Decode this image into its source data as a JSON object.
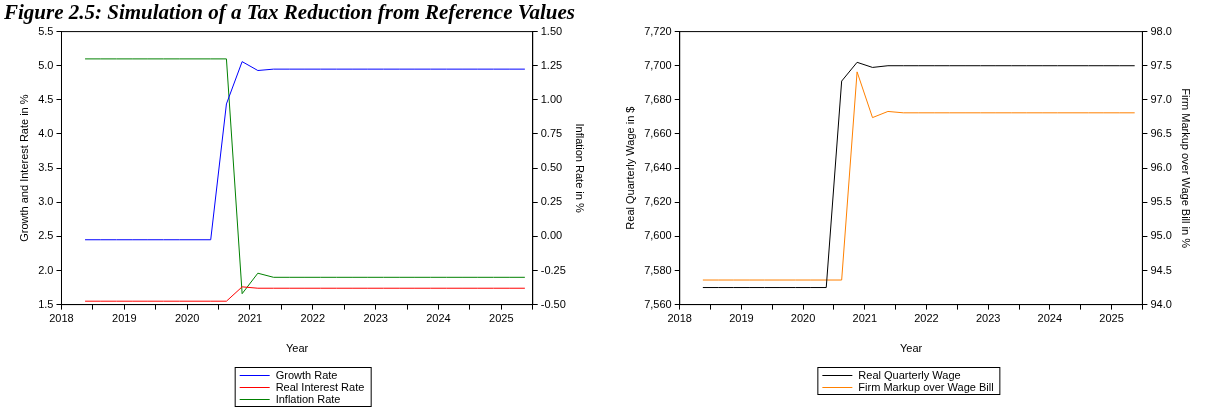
{
  "chart_data": [
    {
      "type": "line",
      "title": "Figure 2.5: Simulation of a Tax Reduction from Reference Values",
      "xlabel": "Year",
      "ylabel": "Growth and Interest Rate in %",
      "y2label": "Inflation Rate in %",
      "x": [
        2018.875,
        2019.125,
        2019.375,
        2019.625,
        2019.875,
        2020.125,
        2020.375,
        2020.625,
        2020.875,
        2021.125,
        2021.375,
        2021.625,
        2021.875,
        2022.125,
        2022.375,
        2022.625,
        2022.875,
        2023.125,
        2023.375,
        2023.625,
        2023.875,
        2024.125,
        2024.375,
        2024.625,
        2024.875,
        2025.125,
        2025.375,
        2025.625,
        2025.875
      ],
      "series": [
        {
          "name": "Growth Rate",
          "color": "#0000ff",
          "values": [
            2.45,
            2.45,
            2.45,
            2.45,
            2.45,
            2.45,
            2.45,
            2.45,
            2.45,
            4.44,
            5.06,
            4.93,
            4.95,
            4.95,
            4.95,
            4.95,
            4.95,
            4.95,
            4.95,
            4.95,
            4.95,
            4.95,
            4.95,
            4.95,
            4.95,
            4.95,
            4.95,
            4.95,
            4.95
          ]
        },
        {
          "name": "Real Interest Rate",
          "color": "#ff0000",
          "values": [
            1.55,
            1.55,
            1.55,
            1.55,
            1.55,
            1.55,
            1.55,
            1.55,
            1.55,
            1.55,
            1.76,
            1.74,
            1.74,
            1.74,
            1.74,
            1.74,
            1.74,
            1.74,
            1.74,
            1.74,
            1.74,
            1.74,
            1.74,
            1.74,
            1.74,
            1.74,
            1.74,
            1.74,
            1.74
          ]
        },
        {
          "name": "Inflation Rate",
          "color": "#008000",
          "axis": "y2",
          "values": [
            1.3,
            1.3,
            1.3,
            1.3,
            1.3,
            1.3,
            1.3,
            1.3,
            1.3,
            1.3,
            -0.42,
            -0.27,
            -0.3,
            -0.3,
            -0.3,
            -0.3,
            -0.3,
            -0.3,
            -0.3,
            -0.3,
            -0.3,
            -0.3,
            -0.3,
            -0.3,
            -0.3,
            -0.3,
            -0.3,
            -0.3,
            -0.3
          ]
        }
      ],
      "xlim": [
        2018.5,
        2026.0
      ],
      "xticks": [
        {
          "value": 2018.5,
          "label": "2018"
        },
        {
          "value": 2019,
          "label": null
        },
        {
          "value": 2019.5,
          "label": "2019"
        },
        {
          "value": 2020,
          "label": null
        },
        {
          "value": 2020.5,
          "label": "2020"
        },
        {
          "value": 2021,
          "label": null
        },
        {
          "value": 2021.5,
          "label": "2021"
        },
        {
          "value": 2022,
          "label": null
        },
        {
          "value": 2022.5,
          "label": "2022"
        },
        {
          "value": 2023,
          "label": null
        },
        {
          "value": 2023.5,
          "label": "2023"
        },
        {
          "value": 2024,
          "label": null
        },
        {
          "value": 2024.5,
          "label": "2024"
        },
        {
          "value": 2025,
          "label": null
        },
        {
          "value": 2025.5,
          "label": "2025"
        },
        {
          "value": 2026,
          "label": null
        }
      ],
      "ylim": [
        1.5,
        5.5
      ],
      "yticks": [
        {
          "value": 1.5,
          "label": "1.5"
        },
        {
          "value": 2,
          "label": "2.0"
        },
        {
          "value": 2.5,
          "label": "2.5"
        },
        {
          "value": 3,
          "label": "3.0"
        },
        {
          "value": 3.5,
          "label": "3.5"
        },
        {
          "value": 4,
          "label": "4.0"
        },
        {
          "value": 4.5,
          "label": "4.5"
        },
        {
          "value": 5,
          "label": "5.0"
        },
        {
          "value": 5.5,
          "label": "5.5"
        }
      ],
      "y2lim": [
        -0.5,
        1.5
      ],
      "y2ticks": [
        {
          "value": -0.5,
          "label": "-0.50"
        },
        {
          "value": -0.25,
          "label": "-0.25"
        },
        {
          "value": 0,
          "label": "0.00"
        },
        {
          "value": 0.25,
          "label": "0.25"
        },
        {
          "value": 0.5,
          "label": "0.50"
        },
        {
          "value": 0.75,
          "label": "0.75"
        },
        {
          "value": 1,
          "label": "1.00"
        },
        {
          "value": 1.25,
          "label": "1.25"
        },
        {
          "value": 1.5,
          "label": "1.50"
        }
      ],
      "grid": false,
      "legend": "bottom",
      "marker": "none",
      "line_style": "solid"
    },
    {
      "type": "line",
      "xlabel": "Year",
      "ylabel": "Real Quarterly Wage in $",
      "y2label": "Firm Markup over Wage Bill in %",
      "x": [
        2018.875,
        2019.125,
        2019.375,
        2019.625,
        2019.875,
        2020.125,
        2020.375,
        2020.625,
        2020.875,
        2021.125,
        2021.375,
        2021.625,
        2021.875,
        2022.125,
        2022.375,
        2022.625,
        2022.875,
        2023.125,
        2023.375,
        2023.625,
        2023.875,
        2024.125,
        2024.375,
        2024.625,
        2024.875,
        2025.125,
        2025.375,
        2025.625,
        2025.875
      ],
      "series": [
        {
          "name": "Real Quarterly Wage",
          "color": "#000000",
          "values": [
            7570,
            7570,
            7570,
            7570,
            7570,
            7570,
            7570,
            7570,
            7570,
            7691,
            7702,
            7699,
            7700,
            7700,
            7700,
            7700,
            7700,
            7700,
            7700,
            7700,
            7700,
            7700,
            7700,
            7700,
            7700,
            7700,
            7700,
            7700,
            7700
          ]
        },
        {
          "name": "Firm Markup over Wage Bill",
          "color": "#ff8000",
          "axis": "y2",
          "values": [
            94.36,
            94.36,
            94.36,
            94.36,
            94.36,
            94.36,
            94.36,
            94.36,
            94.36,
            94.36,
            97.41,
            96.74,
            96.83,
            96.81,
            96.81,
            96.81,
            96.81,
            96.81,
            96.81,
            96.81,
            96.81,
            96.81,
            96.81,
            96.81,
            96.81,
            96.81,
            96.81,
            96.81,
            96.81
          ]
        }
      ],
      "xlim": [
        2018.5,
        2026.0
      ],
      "xticks": [
        {
          "value": 2018.5,
          "label": "2018"
        },
        {
          "value": 2019,
          "label": null
        },
        {
          "value": 2019.5,
          "label": "2019"
        },
        {
          "value": 2020,
          "label": null
        },
        {
          "value": 2020.5,
          "label": "2020"
        },
        {
          "value": 2021,
          "label": null
        },
        {
          "value": 2021.5,
          "label": "2021"
        },
        {
          "value": 2022,
          "label": null
        },
        {
          "value": 2022.5,
          "label": "2022"
        },
        {
          "value": 2023,
          "label": null
        },
        {
          "value": 2023.5,
          "label": "2023"
        },
        {
          "value": 2024,
          "label": null
        },
        {
          "value": 2024.5,
          "label": "2024"
        },
        {
          "value": 2025,
          "label": null
        },
        {
          "value": 2025.5,
          "label": "2025"
        },
        {
          "value": 2026,
          "label": null
        }
      ],
      "ylim": [
        7560,
        7720
      ],
      "yticks": [
        {
          "value": 7560,
          "label": "7,560"
        },
        {
          "value": 7580,
          "label": "7,580"
        },
        {
          "value": 7600,
          "label": "7,600"
        },
        {
          "value": 7620,
          "label": "7,620"
        },
        {
          "value": 7640,
          "label": "7,640"
        },
        {
          "value": 7660,
          "label": "7,660"
        },
        {
          "value": 7680,
          "label": "7,680"
        },
        {
          "value": 7700,
          "label": "7,700"
        },
        {
          "value": 7720,
          "label": "7,720"
        }
      ],
      "y2lim": [
        94,
        98
      ],
      "y2ticks": [
        {
          "value": 94,
          "label": "94.0"
        },
        {
          "value": 94.5,
          "label": "94.5"
        },
        {
          "value": 95,
          "label": "95.0"
        },
        {
          "value": 95.5,
          "label": "95.5"
        },
        {
          "value": 96,
          "label": "96.0"
        },
        {
          "value": 96.5,
          "label": "96.5"
        },
        {
          "value": 97,
          "label": "97.0"
        },
        {
          "value": 97.5,
          "label": "97.5"
        },
        {
          "value": 98,
          "label": "98.0"
        }
      ],
      "grid": false,
      "legend": "bottom",
      "marker": "none",
      "line_style": "solid"
    }
  ]
}
